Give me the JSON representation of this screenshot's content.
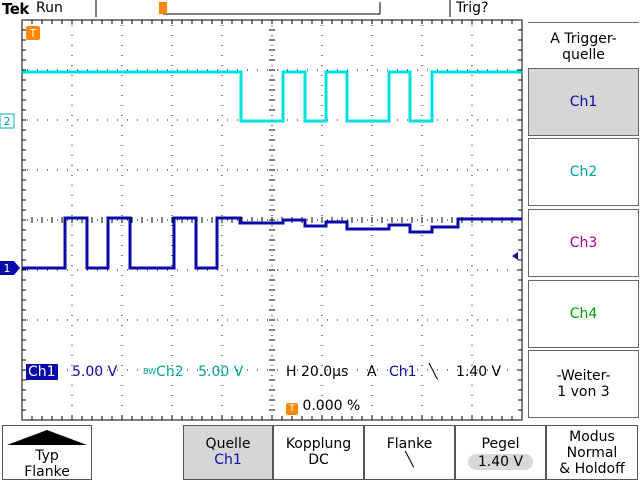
{
  "header": {
    "brand": "Tek",
    "state": "Run",
    "trig_status": "Trig?"
  },
  "channel_markers": {
    "ch1": "1",
    "ch2": "2",
    "trigger": "T"
  },
  "status": {
    "ch1_label": "Ch1",
    "ch1_scale": "5.00 V",
    "bw_mark": "BW",
    "ch2_label": "Ch2",
    "ch2_scale": "5.00 V",
    "timebase": "H 20.0µs",
    "trig_mode_letter": "A",
    "trig_source": "Ch1",
    "trig_slope_symbol": "╲",
    "trig_level": "1.40 V",
    "trig_pos": "0.000 %"
  },
  "menu": {
    "title_line1": "A Trigger-",
    "title_line2": "quelle",
    "sources": [
      "Ch1",
      "Ch2",
      "Ch3",
      "Ch4"
    ],
    "selected": "Ch1",
    "more_line1": "-Weiter-",
    "more_line2": "1 von 3"
  },
  "bottom": {
    "typ_line1": "Typ",
    "typ_line2": "Flanke",
    "quelle_line1": "Quelle",
    "quelle_line2": "Ch1",
    "kopplung_line1": "Kopplung",
    "kopplung_line2": "DC",
    "flanke_line1": "Flanke",
    "flanke_line2": "╲",
    "pegel_line1": "Pegel",
    "pegel_line2": "1.40 V",
    "modus_line1": "Modus",
    "modus_line2": "Normal",
    "modus_line3": "& Holdoff"
  },
  "colors": {
    "ch1": "#0a0aa8",
    "ch2": "#00e0e0",
    "trigger": "#ff8800",
    "grid": "#000000"
  }
}
